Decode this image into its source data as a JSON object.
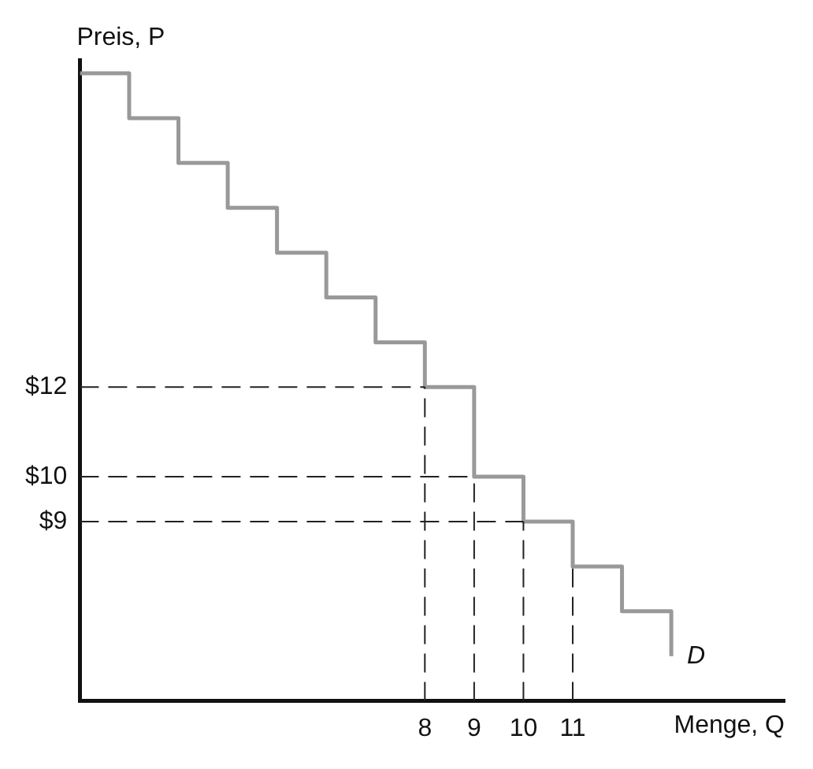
{
  "chart_data": {
    "type": "step",
    "xlabel": "Menge, Q",
    "ylabel": "Preis, P",
    "x": [
      1,
      2,
      3,
      4,
      5,
      6,
      7,
      8,
      9,
      10,
      11,
      12,
      13
    ],
    "series": [
      {
        "color": "#999999",
        "values": [
          19,
          18,
          17,
          16,
          15,
          14,
          13,
          12,
          10,
          9,
          8,
          7,
          6
        ]
      }
    ],
    "xlim": [
      1,
      15.3
    ],
    "xticks": [
      8,
      9,
      10,
      11
    ],
    "ylim": [
      5,
      19.3
    ],
    "yticks": [
      {
        "value": 9,
        "label": "$9"
      },
      {
        "value": 10,
        "label": "$10"
      },
      {
        "value": 12,
        "label": "$12"
      }
    ],
    "ref_lines": [
      {
        "axis": "y",
        "value": 12,
        "line_style": "dashed"
      },
      {
        "axis": "y",
        "value": 10,
        "line_style": "dashed"
      },
      {
        "axis": "y",
        "value": 9,
        "line_style": "dashed"
      },
      {
        "axis": "x",
        "value": 8,
        "line_style": "dashed"
      },
      {
        "axis": "x",
        "value": 9,
        "line_style": "dashed"
      },
      {
        "axis": "x",
        "value": 10,
        "line_style": "dashed"
      },
      {
        "axis": "x",
        "value": 11,
        "line_style": "dashed"
      }
    ],
    "annotations": [
      "D"
    ],
    "grid": false,
    "legend": false,
    "marker": "none",
    "line_style": "solid"
  }
}
